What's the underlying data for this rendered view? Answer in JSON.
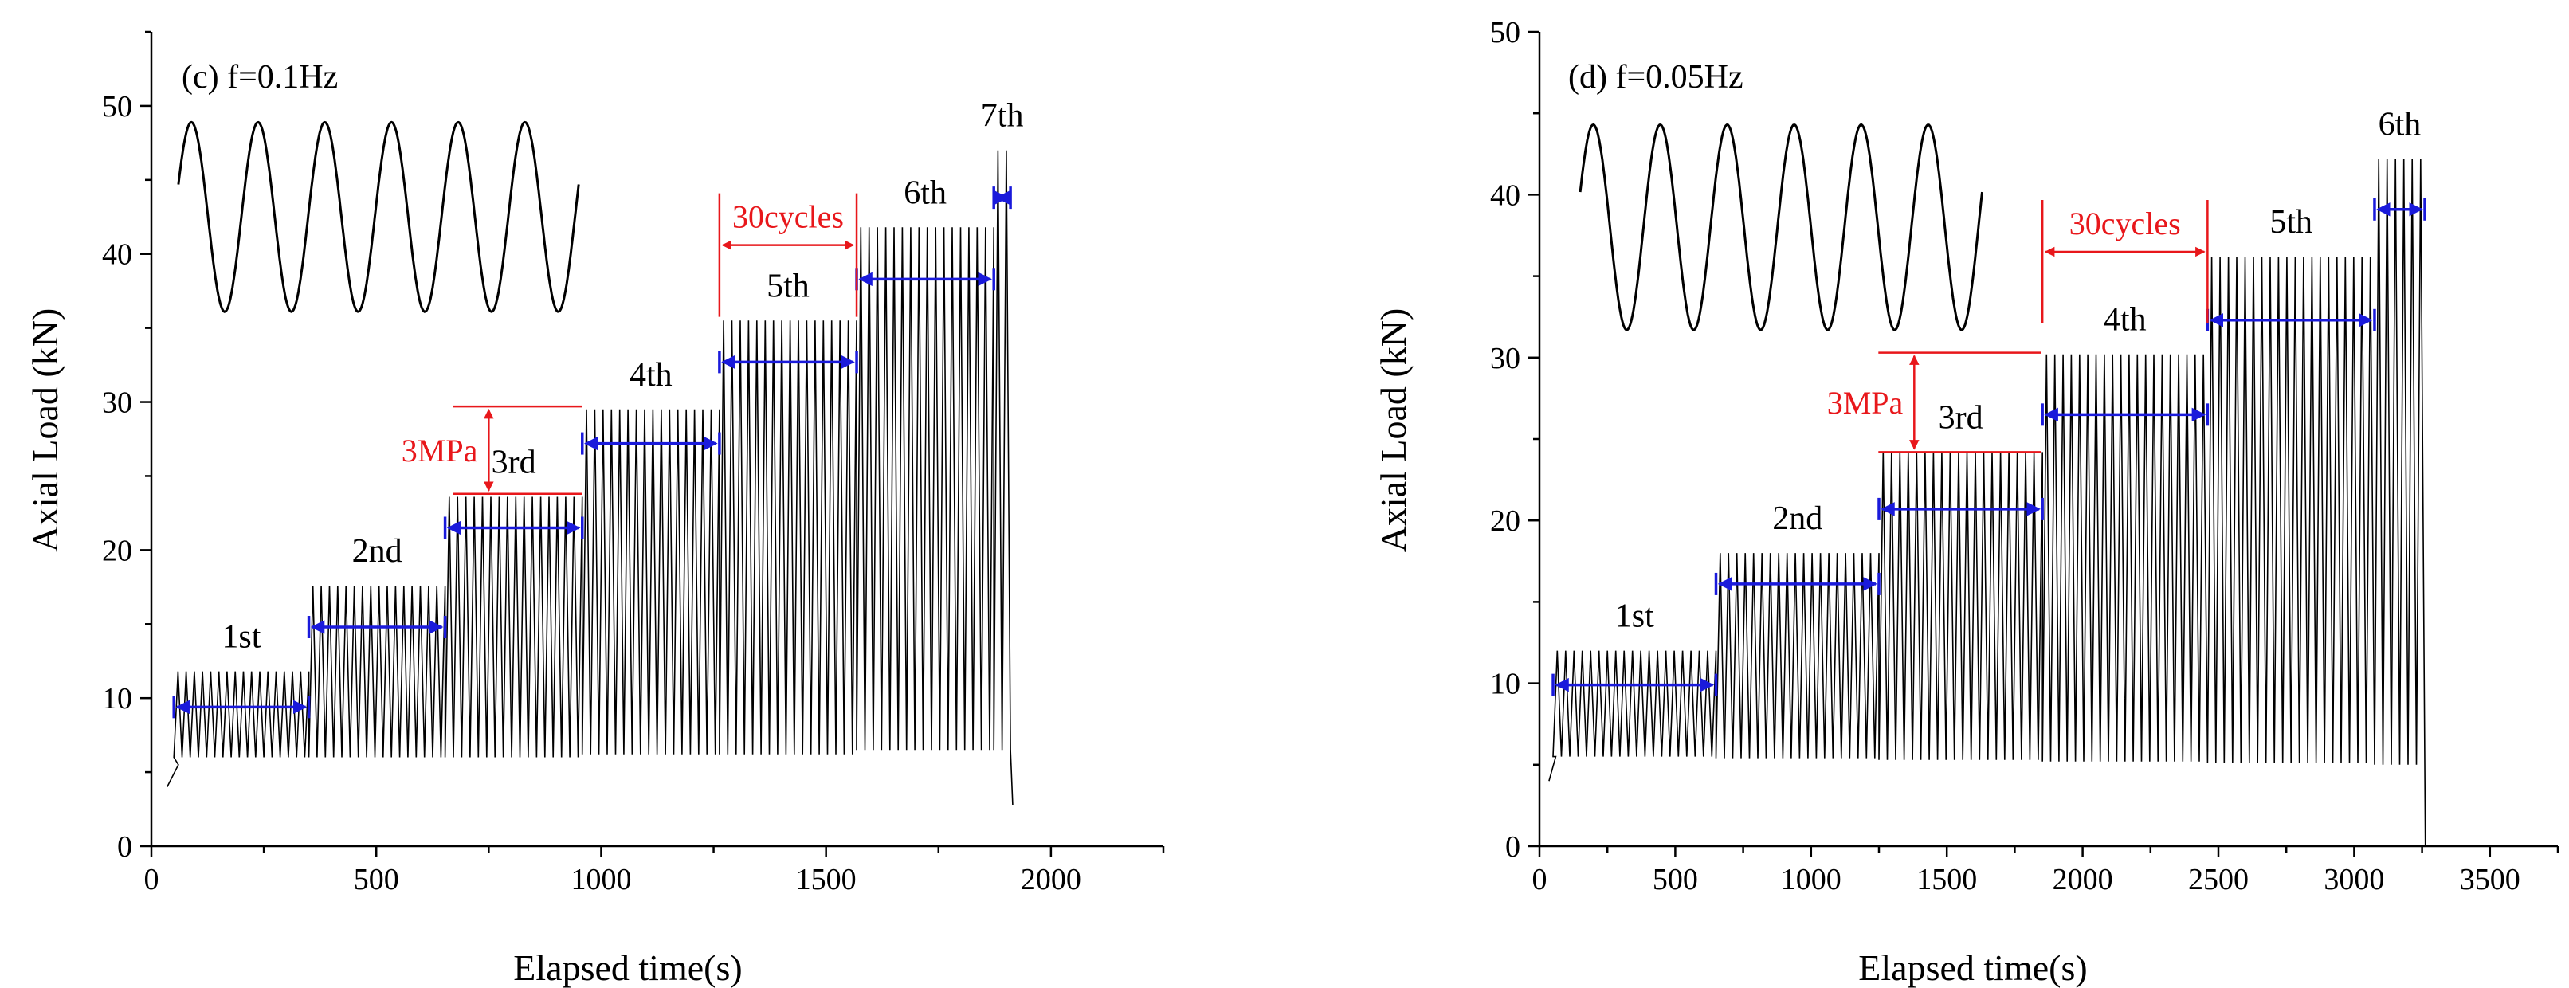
{
  "colors": {
    "signal": "#000000",
    "stage_arrow": "#1a1adb",
    "annotation": "#e8171b",
    "axis": "#000000"
  },
  "chart_data": [
    {
      "type": "line",
      "panel_label": "(c) f=0.1Hz",
      "xlabel": "Elapsed time(s)",
      "ylabel": "Axial Load (kN)",
      "xlim": [
        0,
        2250
      ],
      "ylim": [
        0,
        55
      ],
      "xticks": [
        0,
        500,
        1000,
        1500,
        2000
      ],
      "yticks": [
        0,
        10,
        20,
        30,
        40,
        50
      ],
      "ramp": {
        "t": [
          35,
          60
        ],
        "load": [
          4,
          5.5
        ]
      },
      "end_drop": {
        "t": 1915,
        "load": 2.8
      },
      "stages": [
        {
          "label": "1st",
          "t_start": 50,
          "t_end": 350,
          "min": 6,
          "max": 11.8,
          "arrow_y": 9.4
        },
        {
          "label": "2nd",
          "t_start": 350,
          "t_end": 653,
          "min": 6,
          "max": 17.6,
          "arrow_y": 14.8
        },
        {
          "label": "3rd",
          "t_start": 653,
          "t_end": 958,
          "min": 6,
          "max": 23.6,
          "arrow_y": 21.5
        },
        {
          "label": "4th",
          "t_start": 958,
          "t_end": 1263,
          "min": 6.2,
          "max": 29.5,
          "arrow_y": 27.2
        },
        {
          "label": "5th",
          "t_start": 1263,
          "t_end": 1568,
          "min": 6.2,
          "max": 35.5,
          "arrow_y": 32.7
        },
        {
          "label": "6th",
          "t_start": 1568,
          "t_end": 1873,
          "min": 6.5,
          "max": 41.8,
          "arrow_y": 38.3
        },
        {
          "label": "7th",
          "t_start": 1873,
          "t_end": 1910,
          "min": 6.5,
          "max": 47,
          "arrow_y": 43.8
        }
      ],
      "cycles_annotation": {
        "label": "30cycles",
        "t_start": 1263,
        "t_end": 1568,
        "y": 40.6
      },
      "stress_annotation": {
        "label": "3MPa",
        "t": 750,
        "y_low": 23.8,
        "y_high": 29.7
      },
      "inset": {
        "t_start": 60,
        "t_end": 950,
        "y_center": 42.5,
        "amplitude": 6.4,
        "cycles": 6
      }
    },
    {
      "type": "line",
      "panel_label": "(d) f=0.05Hz",
      "xlabel": "Elapsed time(s)",
      "ylabel": "Axial Load (kN)",
      "xlim": [
        0,
        3750
      ],
      "ylim": [
        0,
        50
      ],
      "xticks": [
        0,
        500,
        1000,
        1500,
        2000,
        2500,
        3000,
        3500
      ],
      "yticks": [
        0,
        10,
        20,
        30,
        40,
        50
      ],
      "ramp": {
        "t": [
          35,
          60
        ],
        "load": [
          4,
          5.5
        ]
      },
      "end_drop": {
        "t": 3262,
        "load": 0
      },
      "stages": [
        {
          "label": "1st",
          "t_start": 50,
          "t_end": 650,
          "min": 5.5,
          "max": 12,
          "arrow_y": 9.9
        },
        {
          "label": "2nd",
          "t_start": 650,
          "t_end": 1250,
          "min": 5.4,
          "max": 18,
          "arrow_y": 16.1
        },
        {
          "label": "3rd",
          "t_start": 1250,
          "t_end": 1852,
          "min": 5.3,
          "max": 24.2,
          "arrow_y": 20.7
        },
        {
          "label": "4th",
          "t_start": 1852,
          "t_end": 2460,
          "min": 5.2,
          "max": 30.2,
          "arrow_y": 26.5
        },
        {
          "label": "5th",
          "t_start": 2460,
          "t_end": 3075,
          "min": 5.1,
          "max": 36.2,
          "arrow_y": 32.3
        },
        {
          "label": "6th",
          "t_start": 3075,
          "t_end": 3260,
          "min": 5,
          "max": 42.2,
          "arrow_y": 39.1
        }
      ],
      "cycles_annotation": {
        "label": "30cycles",
        "t_start": 1852,
        "t_end": 2460,
        "y": 36.5
      },
      "stress_annotation": {
        "label": "3MPa",
        "t": 1380,
        "y_low": 24.2,
        "y_high": 30.3
      },
      "inset": {
        "t_start": 150,
        "t_end": 1630,
        "y_center": 38,
        "amplitude": 6.3,
        "cycles": 6
      }
    }
  ]
}
